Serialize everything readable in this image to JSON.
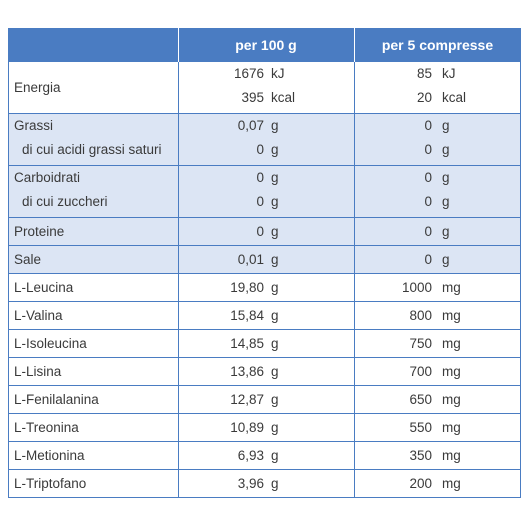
{
  "table": {
    "header": {
      "per_100g": "per 100 g",
      "per_5": "per 5 compresse"
    },
    "rows": [
      {
        "labels": [
          "Energia"
        ],
        "per_100g": [
          [
            "1676",
            "kJ"
          ],
          [
            "395",
            "kcal"
          ]
        ],
        "per_5": [
          [
            "85",
            "kJ"
          ],
          [
            "20",
            "kcal"
          ]
        ],
        "shaded": false
      },
      {
        "labels": [
          "Grassi",
          "di cui acidi grassi saturi"
        ],
        "per_100g": [
          [
            "0,07",
            "g"
          ],
          [
            "0",
            "g"
          ]
        ],
        "per_5": [
          [
            "0",
            "g"
          ],
          [
            "0",
            "g"
          ]
        ],
        "shaded": true
      },
      {
        "labels": [
          "Carboidrati",
          "di cui zuccheri"
        ],
        "per_100g": [
          [
            "0",
            "g"
          ],
          [
            "0",
            "g"
          ]
        ],
        "per_5": [
          [
            "0",
            "g"
          ],
          [
            "0",
            "g"
          ]
        ],
        "shaded": true
      },
      {
        "labels": [
          "Proteine"
        ],
        "per_100g": [
          [
            "0",
            "g"
          ]
        ],
        "per_5": [
          [
            "0",
            "g"
          ]
        ],
        "shaded": true
      },
      {
        "labels": [
          "Sale"
        ],
        "per_100g": [
          [
            "0,01",
            "g"
          ]
        ],
        "per_5": [
          [
            "0",
            "g"
          ]
        ],
        "shaded": true
      },
      {
        "labels": [
          "L-Leucina"
        ],
        "per_100g": [
          [
            "19,80",
            "g"
          ]
        ],
        "per_5": [
          [
            "1000",
            "mg"
          ]
        ],
        "shaded": false
      },
      {
        "labels": [
          "L-Valina"
        ],
        "per_100g": [
          [
            "15,84",
            "g"
          ]
        ],
        "per_5": [
          [
            "800",
            "mg"
          ]
        ],
        "shaded": false
      },
      {
        "labels": [
          "L-Isoleucina"
        ],
        "per_100g": [
          [
            "14,85",
            "g"
          ]
        ],
        "per_5": [
          [
            "750",
            "mg"
          ]
        ],
        "shaded": false
      },
      {
        "labels": [
          "L-Lisina"
        ],
        "per_100g": [
          [
            "13,86",
            "g"
          ]
        ],
        "per_5": [
          [
            "700",
            "mg"
          ]
        ],
        "shaded": false
      },
      {
        "labels": [
          "L-Fenilalanina"
        ],
        "per_100g": [
          [
            "12,87",
            "g"
          ]
        ],
        "per_5": [
          [
            "650",
            "mg"
          ]
        ],
        "shaded": false
      },
      {
        "labels": [
          "L-Treonina"
        ],
        "per_100g": [
          [
            "10,89",
            "g"
          ]
        ],
        "per_5": [
          [
            "550",
            "mg"
          ]
        ],
        "shaded": false
      },
      {
        "labels": [
          "L-Metionina"
        ],
        "per_100g": [
          [
            "6,93",
            "g"
          ]
        ],
        "per_5": [
          [
            "350",
            "mg"
          ]
        ],
        "shaded": false
      },
      {
        "labels": [
          "L-Triptofano"
        ],
        "per_100g": [
          [
            "3,96",
            "g"
          ]
        ],
        "per_5": [
          [
            "200",
            "mg"
          ]
        ],
        "shaded": false
      }
    ]
  }
}
